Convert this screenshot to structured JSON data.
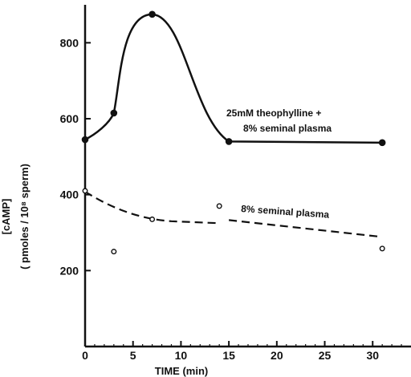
{
  "chart_data": {
    "type": "line",
    "title": "",
    "xlabel": "TIME (min)",
    "ylabel_main": "[cAMP]",
    "ylabel_sub": "( pmoles / 10⁸ sperm)",
    "xlim": [
      0,
      34
    ],
    "ylim": [
      0,
      900
    ],
    "xticks": [
      0,
      5,
      10,
      15,
      20,
      25,
      30
    ],
    "yticks": [
      200,
      400,
      600,
      800
    ],
    "grid": false,
    "series": [
      {
        "name": "25mM theophylline + 8% seminal plasma",
        "style": "solid",
        "marker": "filled-circle",
        "points": [
          [
            0,
            545
          ],
          [
            3,
            615
          ],
          [
            7,
            875
          ],
          [
            15,
            540
          ],
          [
            31,
            537
          ]
        ]
      },
      {
        "name": "8% seminal plasma",
        "style": "dashed",
        "marker": "open-circle",
        "points": [
          [
            0,
            410
          ],
          [
            3,
            250
          ],
          [
            7,
            335
          ],
          [
            14,
            370
          ],
          [
            31,
            258
          ]
        ]
      }
    ],
    "annotations": [
      {
        "text_line1": "25mM theophylline +",
        "text_line2": "8%  seminal plasma"
      },
      {
        "text": "8%  seminal plasma"
      }
    ]
  }
}
